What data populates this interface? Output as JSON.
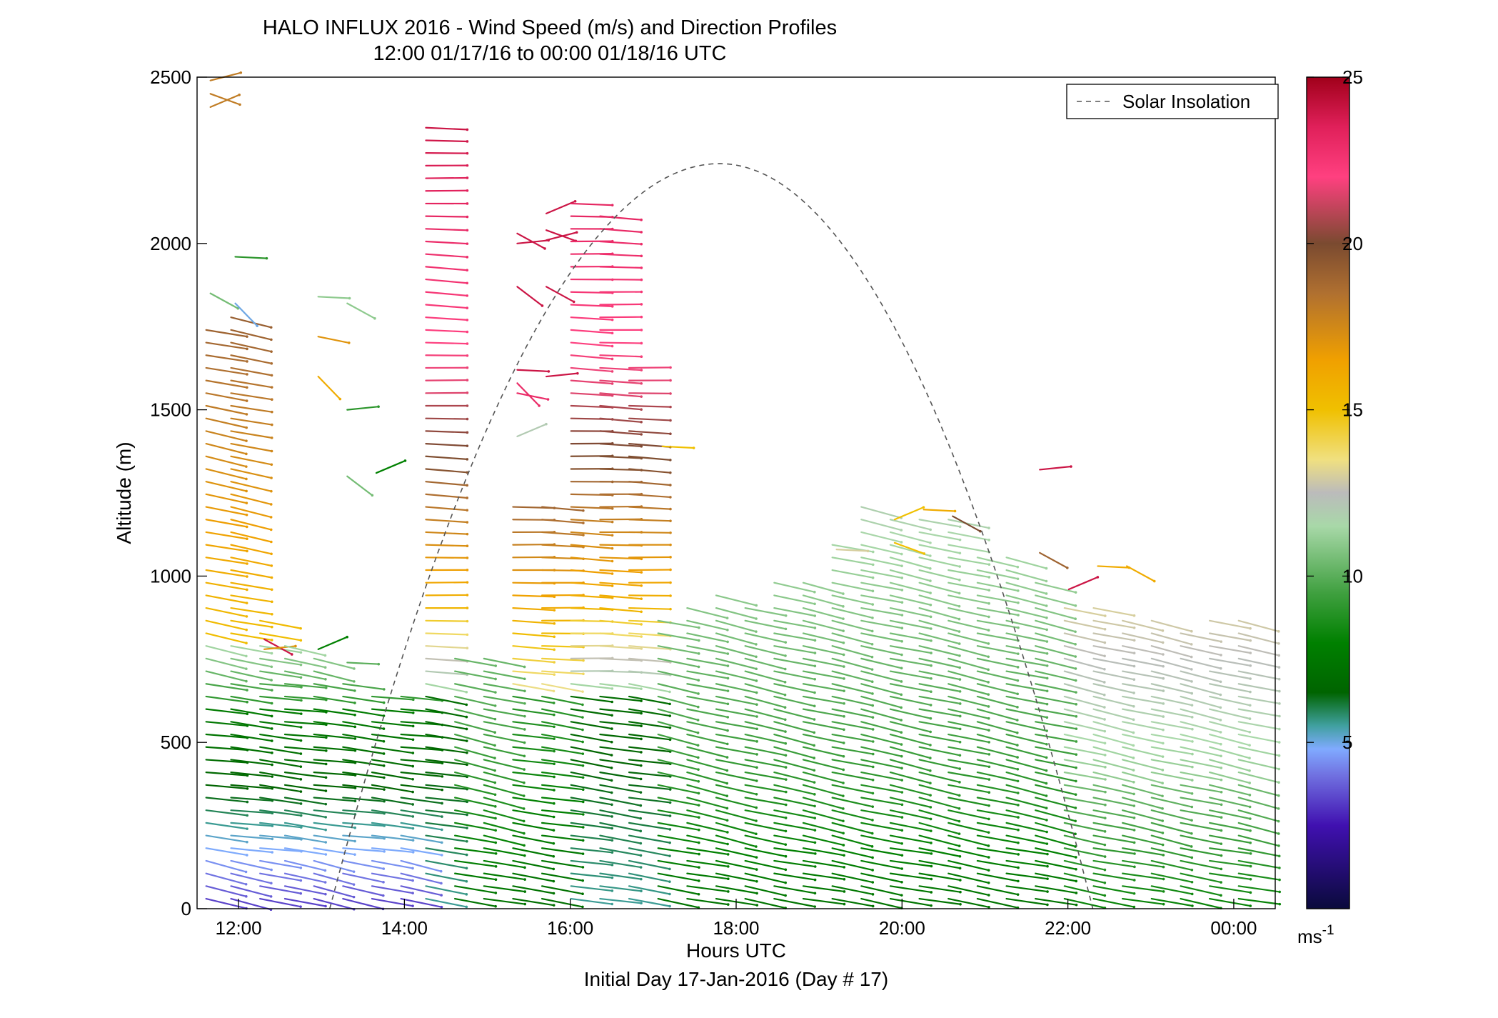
{
  "chart_data": {
    "type": "wind-barb-profile",
    "title": "HALO INFLUX 2016 - Wind Speed (m/s) and Direction Profiles",
    "subtitle": "12:00 01/17/16 to 00:00 01/18/16  UTC",
    "xlabel": "Hours UTC",
    "xlabel2": "Initial Day 17-Jan-2016 (Day # 17)",
    "ylabel": "Altitude (m)",
    "xlim": [
      11.5,
      24.5
    ],
    "ylim": [
      0,
      2500
    ],
    "x_ticks": [
      12,
      14,
      16,
      18,
      20,
      22,
      24
    ],
    "x_tick_labels": [
      "12:00",
      "14:00",
      "16:00",
      "18:00",
      "20:00",
      "22:00",
      "00:00"
    ],
    "y_ticks": [
      0,
      500,
      1000,
      1500,
      2000,
      2500
    ],
    "y_tick_labels": [
      "0",
      "500",
      "1000",
      "1500",
      "2000",
      "2500"
    ],
    "grid": false,
    "legend": {
      "position": "top-right",
      "entries": [
        {
          "label": "Solar Insolation",
          "style": "dashed",
          "color": "#555555"
        }
      ]
    },
    "solar_insolation": {
      "start_hour": 13.1,
      "peak_hour": 17.8,
      "end_hour": 22.3,
      "peak_altitude": 2240
    },
    "colorbar": {
      "min": 0,
      "max": 25,
      "ticks": [
        5,
        10,
        15,
        20,
        25
      ],
      "tick_labels": [
        "5",
        "10",
        "15",
        "20",
        "25"
      ],
      "unit_label": "ms",
      "unit_exponent": "-1",
      "stops": [
        [
          0,
          "#0a0a3c"
        ],
        [
          2.5,
          "#4010b0"
        ],
        [
          4,
          "#7070e0"
        ],
        [
          4.8,
          "#80aaff"
        ],
        [
          5.5,
          "#40a0a0"
        ],
        [
          6.5,
          "#006400"
        ],
        [
          8,
          "#008000"
        ],
        [
          9.5,
          "#40a040"
        ],
        [
          11.5,
          "#a8d8a8"
        ],
        [
          12.5,
          "#bbbbbb"
        ],
        [
          13.5,
          "#f0e080"
        ],
        [
          15,
          "#f0c000"
        ],
        [
          16.5,
          "#f0a000"
        ],
        [
          18.5,
          "#b07030"
        ],
        [
          20,
          "#7a4a30"
        ],
        [
          22,
          "#ff4080"
        ],
        [
          23.5,
          "#e0205a"
        ],
        [
          25,
          "#a0001a"
        ]
      ]
    },
    "profiles": [
      {
        "time": 11.85,
        "top": 1740,
        "regime": "west",
        "extras": [
          [
            2410,
            18
          ],
          [
            2450,
            18
          ],
          [
            2490,
            18
          ],
          [
            1850,
            10.5
          ]
        ]
      },
      {
        "time": 12.15,
        "top": 1780,
        "regime": "west",
        "extras": [
          [
            1960,
            9
          ],
          [
            1820,
            5
          ]
        ]
      },
      {
        "time": 12.5,
        "top": 870,
        "regime": "west",
        "extras": [
          [
            810,
            24
          ],
          [
            780,
            17
          ]
        ]
      },
      {
        "time": 12.8,
        "top": 800,
        "regime": "west",
        "extras": []
      },
      {
        "time": 13.15,
        "top": 780,
        "regime": "west",
        "extras": [
          [
            1840,
            11
          ],
          [
            1600,
            16
          ],
          [
            1720,
            17
          ],
          [
            780,
            8
          ]
        ]
      },
      {
        "time": 13.5,
        "top": 700,
        "regime": "west",
        "extras": [
          [
            1820,
            11
          ],
          [
            1500,
            9
          ],
          [
            1300,
            10.5
          ],
          [
            740,
            10
          ]
        ]
      },
      {
        "time": 13.85,
        "top": 660,
        "regime": "west",
        "extras": [
          [
            1310,
            8
          ]
        ]
      },
      {
        "time": 14.2,
        "top": 660,
        "regime": "west",
        "extras": []
      },
      {
        "time": 14.5,
        "top": 2370,
        "regime": "jet",
        "extras": []
      },
      {
        "time": 14.85,
        "top": 780,
        "regime": "mid",
        "extras": []
      },
      {
        "time": 15.2,
        "top": 780,
        "regime": "mid",
        "extras": []
      },
      {
        "time": 15.55,
        "top": 1220,
        "regime": "high",
        "extras": [
          [
            2030,
            24
          ],
          [
            2000,
            24
          ],
          [
            1870,
            24
          ],
          [
            1620,
            24
          ],
          [
            1580,
            23
          ],
          [
            1550,
            23
          ],
          [
            1420,
            12
          ]
        ]
      },
      {
        "time": 15.9,
        "top": 1240,
        "regime": "high",
        "extras": [
          [
            2090,
            24
          ],
          [
            2040,
            24
          ],
          [
            2010,
            24
          ],
          [
            1870,
            24
          ],
          [
            1600,
            24
          ]
        ]
      },
      {
        "time": 16.25,
        "top": 2140,
        "regime": "jet",
        "extras": []
      },
      {
        "time": 16.6,
        "top": 2110,
        "regime": "jet",
        "extras": []
      },
      {
        "time": 16.95,
        "top": 1660,
        "regime": "jet",
        "extras": []
      },
      {
        "time": 17.3,
        "top": 880,
        "regime": "mid",
        "extras": [
          [
            1390,
            15
          ]
        ]
      },
      {
        "time": 17.65,
        "top": 920,
        "regime": "mid",
        "extras": []
      },
      {
        "time": 18.0,
        "top": 960,
        "regime": "mid",
        "extras": []
      },
      {
        "time": 18.35,
        "top": 940,
        "regime": "mid",
        "extras": []
      },
      {
        "time": 18.7,
        "top": 980,
        "regime": "mid",
        "extras": []
      },
      {
        "time": 19.05,
        "top": 980,
        "regime": "mid",
        "extras": []
      },
      {
        "time": 19.4,
        "top": 1100,
        "regime": "mid",
        "extras": [
          [
            1080,
            13
          ]
        ]
      },
      {
        "time": 19.75,
        "top": 1210,
        "regime": "mid",
        "extras": []
      },
      {
        "time": 20.1,
        "top": 1190,
        "regime": "mid",
        "extras": [
          [
            1170,
            15
          ],
          [
            1100,
            15
          ]
        ]
      },
      {
        "time": 20.45,
        "top": 1190,
        "regime": "mid",
        "extras": [
          [
            1200,
            16
          ]
        ]
      },
      {
        "time": 20.8,
        "top": 1170,
        "regime": "mid",
        "extras": [
          [
            1180,
            20
          ]
        ]
      },
      {
        "time": 21.15,
        "top": 1060,
        "regime": "mid",
        "extras": []
      },
      {
        "time": 21.5,
        "top": 1060,
        "regime": "mid",
        "extras": []
      },
      {
        "time": 21.85,
        "top": 1000,
        "regime": "mid",
        "extras": [
          [
            1070,
            19
          ],
          [
            1320,
            24
          ]
        ]
      },
      {
        "time": 22.2,
        "top": 940,
        "regime": "east",
        "extras": [
          [
            960,
            24
          ]
        ]
      },
      {
        "time": 22.55,
        "top": 920,
        "regime": "east",
        "extras": [
          [
            1030,
            16
          ]
        ]
      },
      {
        "time": 22.9,
        "top": 900,
        "regime": "east",
        "extras": [
          [
            1030,
            16
          ]
        ]
      },
      {
        "time": 23.25,
        "top": 880,
        "regime": "east",
        "extras": []
      },
      {
        "time": 23.6,
        "top": 860,
        "regime": "east",
        "extras": []
      },
      {
        "time": 23.95,
        "top": 880,
        "regime": "east",
        "extras": []
      },
      {
        "time": 24.3,
        "top": 880,
        "regime": "east",
        "extras": []
      }
    ]
  }
}
